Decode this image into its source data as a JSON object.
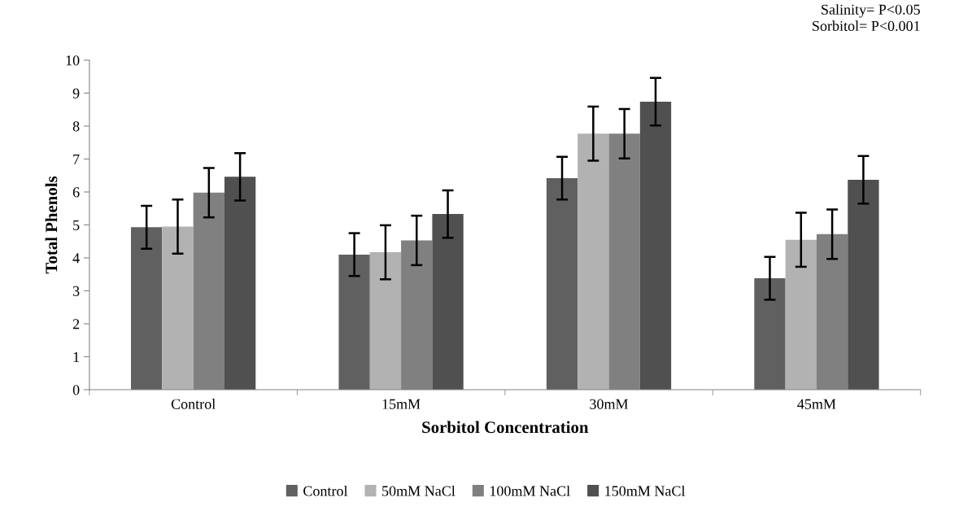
{
  "chart_data": {
    "type": "bar",
    "xlabel": "Sorbitol Concentration",
    "ylabel": "Total Phenols",
    "categories": [
      "Control",
      "15mM",
      "30mM",
      "45mM"
    ],
    "series": [
      {
        "name": "Control",
        "color": "#606060",
        "values": [
          4.93,
          4.1,
          6.42,
          3.38
        ],
        "errors": [
          0.65,
          0.65,
          0.65,
          0.65
        ]
      },
      {
        "name": "50mM NaCl",
        "color": "#b2b2b2",
        "values": [
          4.95,
          4.17,
          7.77,
          4.55
        ],
        "errors": [
          0.82,
          0.82,
          0.82,
          0.82
        ]
      },
      {
        "name": "100mM NaCl",
        "color": "#808080",
        "values": [
          5.98,
          4.53,
          7.77,
          4.72
        ],
        "errors": [
          0.75,
          0.75,
          0.75,
          0.75
        ]
      },
      {
        "name": "150mM NaCl",
        "color": "#505050",
        "values": [
          6.46,
          5.33,
          8.74,
          6.37
        ],
        "errors": [
          0.72,
          0.72,
          0.72,
          0.72
        ]
      }
    ],
    "ylim": [
      0,
      10
    ],
    "yticks": [
      0,
      1,
      2,
      3,
      4,
      5,
      6,
      7,
      8,
      9,
      10
    ],
    "annotations": [
      "Salinity= P<0.05\nSorbitol= P<0.001"
    ],
    "grid": false,
    "legend": "bottom"
  }
}
